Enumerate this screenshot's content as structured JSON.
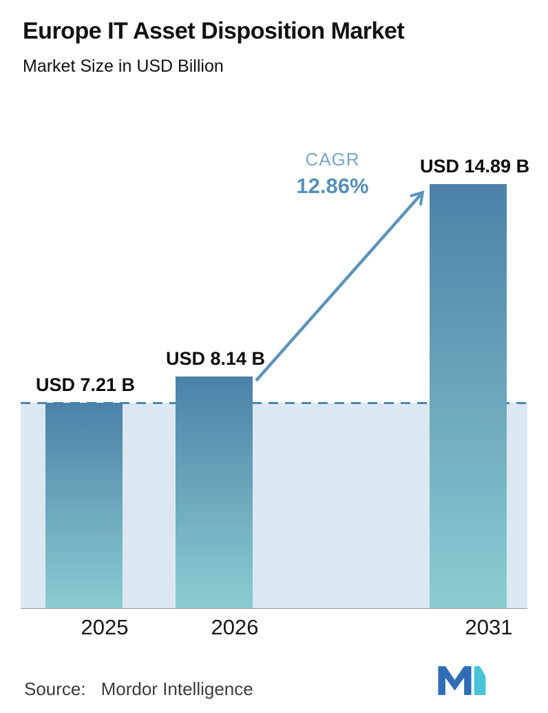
{
  "chart_data": {
    "type": "bar",
    "title": "Europe IT Asset Disposition Market",
    "subtitle": "Market Size in USD Billion",
    "categories": [
      "2025",
      "2026",
      "2031"
    ],
    "values": [
      7.21,
      8.14,
      14.89
    ],
    "value_labels": [
      "USD 7.21 B",
      "USD 8.14 B",
      "USD 14.89 B"
    ],
    "unit": "USD Billion",
    "cagr": {
      "label": "CAGR",
      "value": "12.86%"
    },
    "ylim": [
      0,
      17
    ],
    "xlabel": "",
    "ylabel": "",
    "grid": false,
    "legend": "none",
    "reference_line": {
      "style": "dashed",
      "at_value": 7.21
    },
    "colors": {
      "bar_gradient_top": "#4b81a8",
      "bar_gradient_bottom": "#8cccd1",
      "band_fill": "#dce8f1",
      "dash_line": "#4e86ad",
      "accent_blue": "#5d93b9",
      "cagr_label_color": "#7aa7c6",
      "axis_line": "#979797"
    }
  },
  "footer": {
    "source_label": "Source:",
    "source_value": "Mordor Intelligence"
  },
  "icons": {
    "growth_arrow": "growth-arrow-icon",
    "logo": "mordor-intelligence-logo"
  }
}
